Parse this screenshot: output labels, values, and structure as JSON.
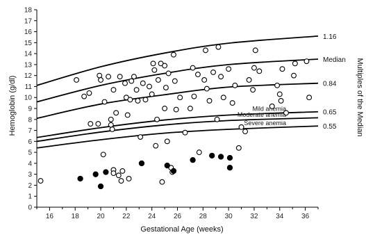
{
  "chart_data": {
    "type": "scatter",
    "title": "",
    "xlabel": "Gestational Age (weeks)",
    "ylabel": "Hemoglobin (g/dl)",
    "y2label": "Multiples of the Median",
    "xlim": [
      15,
      37
    ],
    "ylim": [
      0,
      18
    ],
    "x_ticks": [
      16,
      18,
      20,
      22,
      24,
      26,
      28,
      30,
      32,
      34,
      36
    ],
    "y_ticks": [
      0,
      1,
      2,
      3,
      4,
      5,
      6,
      7,
      8,
      9,
      10,
      11,
      12,
      13,
      14,
      15,
      16,
      17,
      18
    ],
    "grid": false,
    "curves": [
      {
        "right_label": "1.16",
        "points": [
          [
            15,
            11.1
          ],
          [
            20,
            12.8
          ],
          [
            25,
            14.05
          ],
          [
            30,
            14.95
          ],
          [
            37,
            15.6
          ]
        ]
      },
      {
        "right_label": "Median",
        "points": [
          [
            15,
            9.6
          ],
          [
            20,
            11.1
          ],
          [
            25,
            12.2
          ],
          [
            30,
            13.0
          ],
          [
            37,
            13.5
          ]
        ]
      },
      {
        "right_label": "0.84",
        "points": [
          [
            15,
            8.1
          ],
          [
            20,
            9.4
          ],
          [
            25,
            10.25
          ],
          [
            30,
            10.95
          ],
          [
            37,
            11.3
          ]
        ]
      },
      {
        "right_label": "0.65",
        "inline_label": "Mild anemia",
        "points": [
          [
            15,
            6.35
          ],
          [
            20,
            7.25
          ],
          [
            25,
            7.95
          ],
          [
            30,
            8.4
          ],
          [
            37,
            8.7
          ]
        ]
      },
      {
        "right_label": "",
        "inline_label": "Moderate anemia",
        "points": [
          [
            15,
            6.0
          ],
          [
            20,
            6.85
          ],
          [
            25,
            7.5
          ],
          [
            30,
            7.9
          ],
          [
            37,
            8.15
          ]
        ]
      },
      {
        "right_label": "0.55",
        "inline_label": "Severe anemia",
        "points": [
          [
            15,
            5.4
          ],
          [
            20,
            6.15
          ],
          [
            25,
            6.75
          ],
          [
            30,
            7.1
          ],
          [
            37,
            7.4
          ]
        ]
      }
    ],
    "series": [
      {
        "marker": "open-circle",
        "points": [
          [
            15.3,
            2.4
          ],
          [
            18.1,
            11.6
          ],
          [
            18.7,
            10.1
          ],
          [
            19.1,
            10.4
          ],
          [
            19.2,
            7.6
          ],
          [
            19.8,
            7.6
          ],
          [
            19.9,
            12.0
          ],
          [
            20.0,
            11.6
          ],
          [
            20.2,
            4.8
          ],
          [
            20.3,
            9.6
          ],
          [
            20.6,
            11.9
          ],
          [
            20.8,
            8.0
          ],
          [
            20.8,
            7.5
          ],
          [
            20.9,
            7.1
          ],
          [
            21.0,
            10.7
          ],
          [
            21.0,
            3.4
          ],
          [
            21.0,
            3.1
          ],
          [
            21.2,
            8.6
          ],
          [
            21.4,
            2.9
          ],
          [
            21.5,
            11.9
          ],
          [
            21.6,
            2.4
          ],
          [
            21.7,
            3.3
          ],
          [
            21.9,
            11.3
          ],
          [
            22.0,
            10.0
          ],
          [
            22.1,
            8.4
          ],
          [
            22.2,
            2.6
          ],
          [
            22.3,
            9.8
          ],
          [
            22.4,
            11.5
          ],
          [
            22.6,
            11.9
          ],
          [
            22.8,
            10.7
          ],
          [
            22.9,
            9.7
          ],
          [
            23.1,
            6.4
          ],
          [
            23.2,
            4.0
          ],
          [
            23.3,
            11.3
          ],
          [
            23.5,
            9.8
          ],
          [
            23.8,
            11.0
          ],
          [
            24.0,
            10.3
          ],
          [
            24.1,
            13.1
          ],
          [
            24.2,
            12.5
          ],
          [
            24.3,
            5.6
          ],
          [
            24.4,
            8.0
          ],
          [
            24.5,
            11.6
          ],
          [
            24.7,
            13.1
          ],
          [
            24.8,
            2.3
          ],
          [
            25.0,
            12.9
          ],
          [
            25.0,
            9.0
          ],
          [
            25.1,
            10.9
          ],
          [
            25.2,
            6.0
          ],
          [
            25.3,
            12.2
          ],
          [
            25.5,
            3.6
          ],
          [
            25.6,
            3.2
          ],
          [
            25.7,
            13.9
          ],
          [
            25.8,
            11.5
          ],
          [
            25.9,
            8.9
          ],
          [
            26.2,
            10.0
          ],
          [
            26.6,
            6.8
          ],
          [
            27.0,
            9.0
          ],
          [
            27.2,
            12.7
          ],
          [
            27.3,
            10.1
          ],
          [
            27.6,
            12.1
          ],
          [
            27.7,
            5.0
          ],
          [
            28.1,
            11.6
          ],
          [
            28.2,
            14.3
          ],
          [
            28.3,
            10.8
          ],
          [
            28.5,
            9.7
          ],
          [
            28.8,
            12.3
          ],
          [
            29.1,
            8.0
          ],
          [
            29.2,
            14.6
          ],
          [
            29.4,
            11.9
          ],
          [
            29.6,
            10.0
          ],
          [
            30.0,
            12.6
          ],
          [
            30.3,
            9.5
          ],
          [
            30.5,
            11.1
          ],
          [
            30.8,
            5.4
          ],
          [
            31.0,
            7.3
          ],
          [
            31.3,
            6.9
          ],
          [
            31.6,
            11.6
          ],
          [
            31.9,
            10.7
          ],
          [
            32.0,
            12.7
          ],
          [
            32.1,
            14.3
          ],
          [
            32.4,
            12.4
          ],
          [
            33.4,
            9.2
          ],
          [
            33.8,
            11.1
          ],
          [
            34.0,
            10.3
          ],
          [
            34.1,
            9.7
          ],
          [
            34.2,
            12.6
          ],
          [
            34.5,
            8.6
          ],
          [
            35.1,
            12.0
          ],
          [
            35.2,
            13.1
          ],
          [
            36.1,
            13.3
          ],
          [
            36.3,
            10.0
          ]
        ]
      },
      {
        "marker": "filled-circle",
        "points": [
          [
            18.4,
            2.6
          ],
          [
            19.6,
            3.0
          ],
          [
            20.0,
            1.9
          ],
          [
            20.4,
            3.2
          ],
          [
            23.2,
            4.0
          ],
          [
            25.2,
            3.8
          ],
          [
            25.7,
            3.3
          ],
          [
            27.2,
            4.3
          ],
          [
            28.7,
            4.7
          ],
          [
            29.4,
            4.6
          ],
          [
            30.1,
            4.5
          ],
          [
            30.1,
            3.6
          ]
        ]
      }
    ]
  }
}
